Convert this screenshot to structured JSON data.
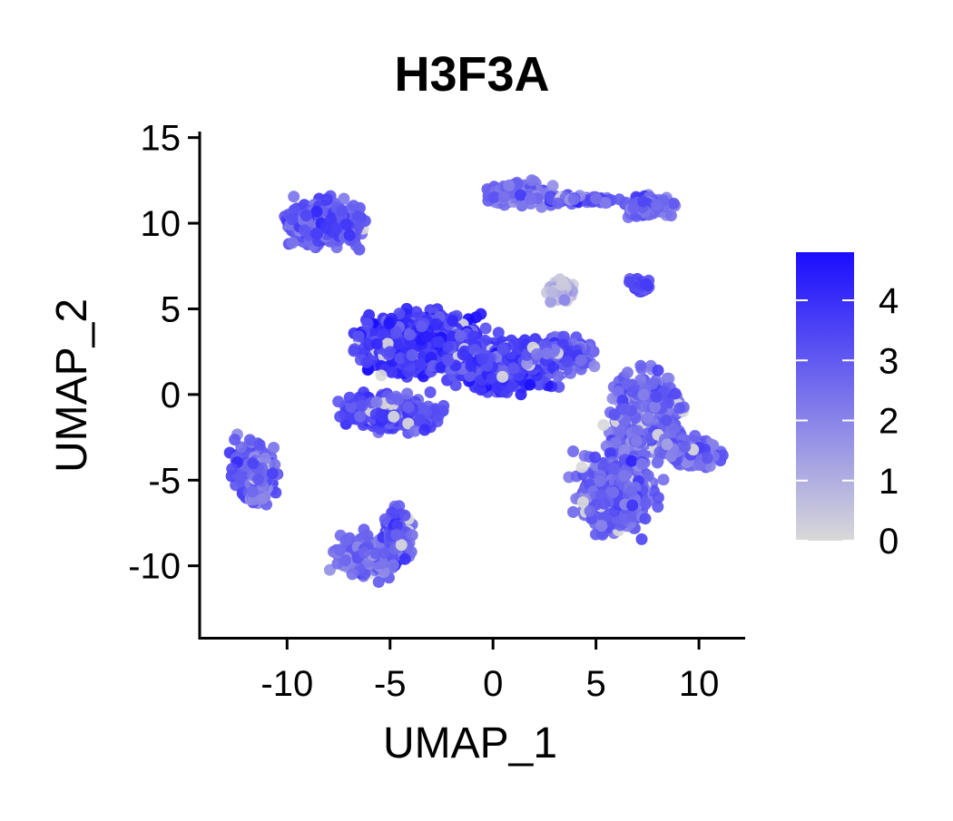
{
  "chart_data": {
    "type": "scatter",
    "title": "H3F3A",
    "xlabel": "UMAP_1",
    "ylabel": "UMAP_2",
    "xlim": [
      -14.2,
      12.2
    ],
    "ylim": [
      -14.2,
      15.3
    ],
    "x_ticks": [
      -10,
      -5,
      0,
      5,
      10
    ],
    "y_ticks": [
      15,
      10,
      5,
      0,
      -5,
      -10
    ],
    "x_tick_labels": [
      "-10",
      "-5",
      "0",
      "5",
      "10"
    ],
    "y_tick_labels": [
      "15",
      "10",
      "5",
      "0",
      "-5",
      "-10"
    ],
    "grid": false,
    "legend": {
      "type": "colorbar",
      "placement": "right",
      "min": 0,
      "max": 4.8,
      "ticks": [
        4,
        3,
        2,
        1,
        0
      ],
      "tick_labels": [
        "4",
        "3",
        "2",
        "1",
        "0"
      ],
      "low_color": "#d9d9d9",
      "high_color": "#1a0dff"
    },
    "clusters": [
      {
        "cx": -8.2,
        "cy": 10.0,
        "sx": 1.9,
        "sy": 1.3,
        "mean_expr": 3.1
      },
      {
        "cx": 1.3,
        "cy": 11.7,
        "sx": 1.6,
        "sy": 0.7,
        "mean_expr": 2.4
      },
      {
        "cx": 7.6,
        "cy": 11.0,
        "sx": 1.1,
        "sy": 0.6,
        "mean_expr": 2.7
      },
      {
        "cx": 4.3,
        "cy": 11.4,
        "sx": 1.8,
        "sy": 0.2,
        "mean_expr": 3.0
      },
      {
        "cx": 3.3,
        "cy": 6.0,
        "sx": 0.6,
        "sy": 0.6,
        "mean_expr": 0.6
      },
      {
        "cx": 7.2,
        "cy": 6.3,
        "sx": 0.5,
        "sy": 0.4,
        "mean_expr": 3.4
      },
      {
        "cx": -3.5,
        "cy": 3.0,
        "sx": 3.0,
        "sy": 1.7,
        "mean_expr": 3.9
      },
      {
        "cx": 0.5,
        "cy": 1.8,
        "sx": 2.6,
        "sy": 1.4,
        "mean_expr": 3.6
      },
      {
        "cx": -5.0,
        "cy": -1.0,
        "sx": 2.2,
        "sy": 1.0,
        "mean_expr": 3.3
      },
      {
        "cx": 3.3,
        "cy": 2.4,
        "sx": 1.4,
        "sy": 1.0,
        "mean_expr": 3.0
      },
      {
        "cx": -11.5,
        "cy": -4.5,
        "sx": 1.0,
        "sy": 1.7,
        "mean_expr": 2.8
      },
      {
        "cx": -6.0,
        "cy": -9.4,
        "sx": 1.6,
        "sy": 1.2,
        "mean_expr": 2.4
      },
      {
        "cx": -4.6,
        "cy": -8.2,
        "sx": 0.6,
        "sy": 1.5,
        "mean_expr": 3.0
      },
      {
        "cx": 7.5,
        "cy": -1.2,
        "sx": 1.6,
        "sy": 2.4,
        "mean_expr": 2.6
      },
      {
        "cx": 6.0,
        "cy": -5.8,
        "sx": 1.8,
        "sy": 2.0,
        "mean_expr": 2.9
      },
      {
        "cx": 9.6,
        "cy": -3.3,
        "sx": 1.3,
        "sy": 0.8,
        "mean_expr": 2.7
      }
    ]
  }
}
